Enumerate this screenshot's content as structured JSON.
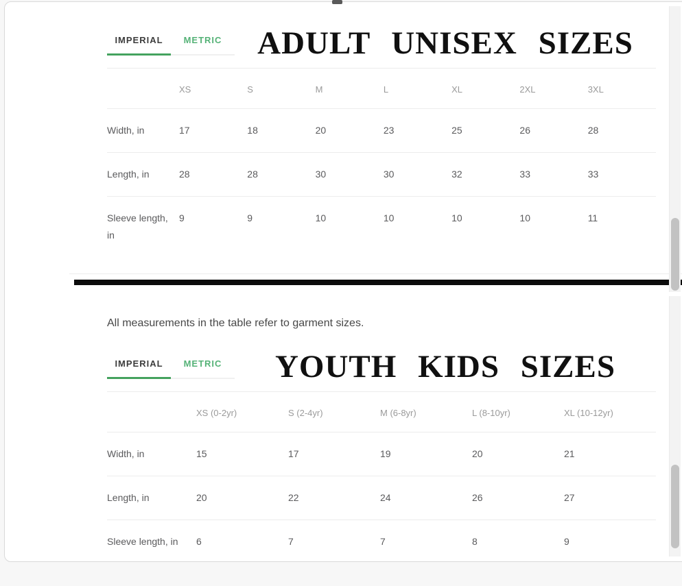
{
  "colors": {
    "accent_green": "#44a25e",
    "metric_green": "#55b277",
    "divider_black": "#0c0c0c",
    "card_background": "#ffffff",
    "page_background": "#f7f7f7"
  },
  "adult_chart": {
    "type": "table",
    "title": "ADULT UNISEX SIZES",
    "tabs": [
      {
        "label": "IMPERIAL",
        "active": true
      },
      {
        "label": "METRIC",
        "active": false
      }
    ],
    "columns": [
      "XS",
      "S",
      "M",
      "L",
      "XL",
      "2XL",
      "3XL"
    ],
    "rows": [
      {
        "label": "Width, in",
        "values": [
          "17",
          "18",
          "20",
          "23",
          "25",
          "26",
          "28"
        ]
      },
      {
        "label": "Length, in",
        "values": [
          "28",
          "28",
          "30",
          "30",
          "32",
          "33",
          "33"
        ]
      },
      {
        "label": "Sleeve length, in",
        "values": [
          "9",
          "9",
          "10",
          "10",
          "10",
          "10",
          "11"
        ]
      }
    ]
  },
  "note": {
    "text": "All measurements in the table refer to garment sizes."
  },
  "youth_chart": {
    "type": "table",
    "title": "YOUTH KIDS SIZES",
    "tabs": [
      {
        "label": "IMPERIAL",
        "active": true
      },
      {
        "label": "METRIC",
        "active": false
      }
    ],
    "columns": [
      "XS (0-2yr)",
      "S (2-4yr)",
      "M (6-8yr)",
      "L (8-10yr)",
      "XL (10-12yr)"
    ],
    "rows": [
      {
        "label": "Width, in",
        "values": [
          "15",
          "17",
          "19",
          "20",
          "21"
        ]
      },
      {
        "label": "Length, in",
        "values": [
          "20",
          "22",
          "24",
          "26",
          "27"
        ]
      },
      {
        "label": "Sleeve length, in",
        "values": [
          "6",
          "7",
          "7",
          "8",
          "9"
        ]
      }
    ]
  }
}
